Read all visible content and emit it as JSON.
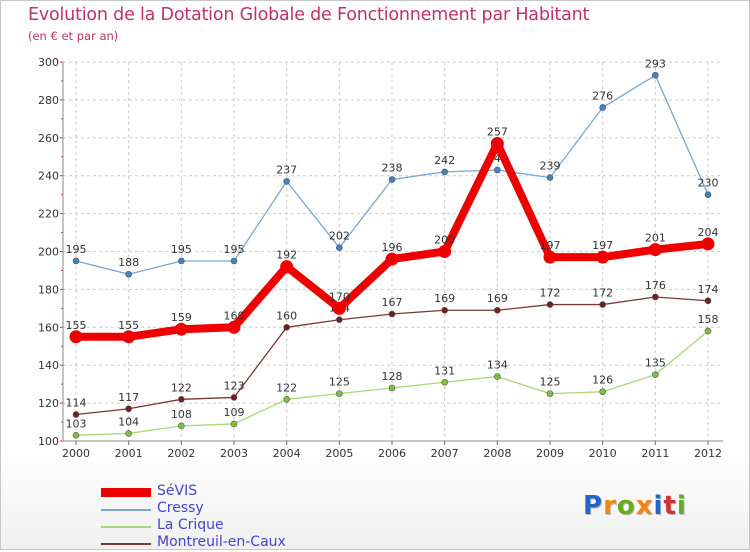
{
  "title": "Evolution de la Dotation Globale de Fonctionnement par Habitant",
  "subtitle": "(en € et par an)",
  "brand": {
    "text": "Proxiti",
    "colors": [
      "#2266cc",
      "#ee8811",
      "#66aa22",
      "#ee8811",
      "#2266cc",
      "#cc3333",
      "#66aa22"
    ]
  },
  "chart_data": {
    "type": "line",
    "title": "Evolution de la Dotation Globale de Fonctionnement par Habitant",
    "subtitle": "(en € et par an)",
    "xlabel": "",
    "ylabel": "",
    "x": [
      "2000",
      "2001",
      "2002",
      "2003",
      "2004",
      "2005",
      "2006",
      "2007",
      "2008",
      "2009",
      "2010",
      "2011",
      "2012"
    ],
    "ylim": [
      100,
      300
    ],
    "yticks": [
      100,
      120,
      140,
      160,
      180,
      200,
      220,
      240,
      260,
      280,
      300
    ],
    "grid": true,
    "legend_position": "bottom-left",
    "series": [
      {
        "name": "SéVIS",
        "color": "#ee0000",
        "emphasis": true,
        "values": [
          155,
          155,
          159,
          160,
          192,
          170,
          196,
          200,
          257,
          197,
          197,
          201,
          204
        ],
        "labels": [
          "155",
          "155",
          "159",
          "160",
          "192",
          "170",
          "196",
          "200",
          "257",
          "197",
          "197",
          "201",
          "204"
        ]
      },
      {
        "name": "Cressy",
        "color": "#7aa6d4",
        "point_color": "#3d84c6",
        "values": [
          195,
          188,
          195,
          195,
          237,
          202,
          238,
          242,
          243,
          239,
          276,
          293,
          230
        ],
        "labels": [
          "195",
          "188",
          "195",
          "195",
          "237",
          "202",
          "238",
          "242",
          "243",
          "239",
          "276",
          "293",
          "230"
        ]
      },
      {
        "name": "La Crique",
        "color": "#a8d878",
        "point_color": "#7cc23a",
        "values": [
          103,
          104,
          108,
          109,
          122,
          125,
          128,
          131,
          134,
          125,
          126,
          135,
          158
        ],
        "labels": [
          "103",
          "104",
          "108",
          "109",
          "122",
          "125",
          "128",
          "131",
          "134",
          "125",
          "126",
          "135",
          "158"
        ]
      },
      {
        "name": "Montreuil-en-Caux",
        "color": "#7a3838",
        "point_color": "#6e1f1f",
        "values": [
          114,
          117,
          122,
          123,
          160,
          164,
          167,
          169,
          169,
          172,
          172,
          176,
          174
        ],
        "labels": [
          "114",
          "117",
          "122",
          "123",
          "160",
          "164",
          "167",
          "169",
          "169",
          "172",
          "172",
          "176",
          "174"
        ]
      }
    ]
  }
}
